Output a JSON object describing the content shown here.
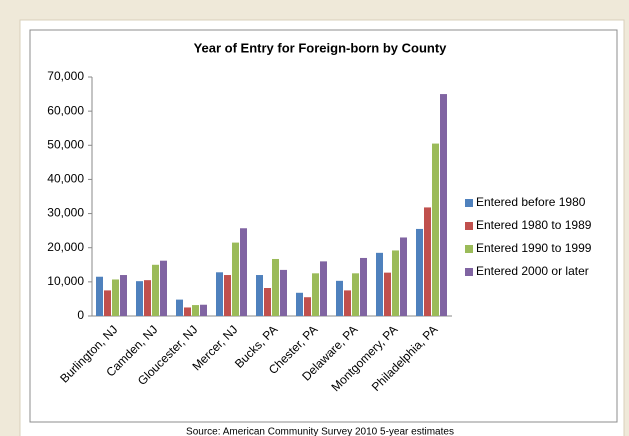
{
  "chart_data": {
    "type": "bar",
    "title": "Year of Entry for Foreign-born by County",
    "source": "Source: American Community Survey 2010 5-year estimates",
    "categories": [
      "Burlington, NJ",
      "Camden, NJ",
      "Gloucester, NJ",
      "Mercer, NJ",
      "Bucks, PA",
      "Chester, PA",
      "Delaware, PA",
      "Montgomery, PA",
      "Philadelphia, PA"
    ],
    "series": [
      {
        "name": "Entered before 1980",
        "color": "#4f81bd",
        "values": [
          11500,
          10200,
          4800,
          12800,
          12000,
          6800,
          10300,
          18500,
          25500
        ]
      },
      {
        "name": "Entered 1980 to 1989",
        "color": "#c0504d",
        "values": [
          7500,
          10500,
          2500,
          12000,
          8200,
          5500,
          7500,
          12700,
          31800
        ]
      },
      {
        "name": "Entered 1990 to 1999",
        "color": "#9bbb59",
        "values": [
          10700,
          15000,
          3200,
          21500,
          16700,
          12500,
          12500,
          19200,
          50500
        ]
      },
      {
        "name": "Entered 2000 or later",
        "color": "#8064a2",
        "values": [
          12000,
          16200,
          3300,
          25700,
          13500,
          16000,
          17000,
          23000,
          65000
        ]
      }
    ],
    "ylim": [
      0,
      70000
    ],
    "yticks": [
      0,
      {
        "value": 10000,
        "label": "10,000"
      },
      {
        "value": 20000,
        "label": "20,000"
      },
      {
        "value": 30000,
        "label": "30,000"
      },
      {
        "value": 40000,
        "label": "40,000"
      },
      {
        "value": 50000,
        "label": "50,000"
      },
      {
        "value": 60000,
        "label": "60,000"
      },
      {
        "value": 70000,
        "label": "70,000"
      }
    ],
    "grid": false,
    "legend": "right"
  }
}
